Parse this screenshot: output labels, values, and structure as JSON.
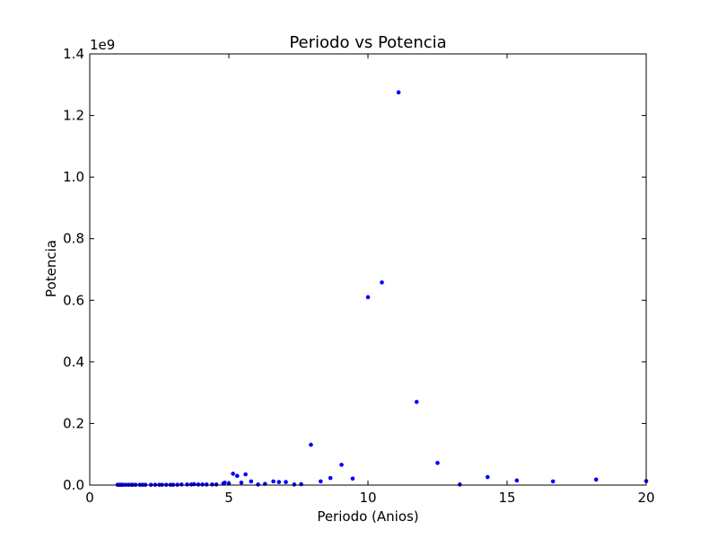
{
  "chart_data": {
    "type": "scatter",
    "title": "Periodo vs Potencia",
    "xlabel": "Periodo (Anios)",
    "ylabel": "Potencia",
    "y_offset_label": "1e9",
    "xlim": [
      0,
      20
    ],
    "ylim": [
      0,
      1.4
    ],
    "y_multiplier": 1000000000,
    "x_ticks": [
      0,
      5,
      10,
      15,
      20
    ],
    "x_tick_labels": [
      "0",
      "5",
      "10",
      "15",
      "20"
    ],
    "y_ticks": [
      0,
      0.2,
      0.4,
      0.6,
      0.8,
      1.0,
      1.2,
      1.4
    ],
    "y_tick_labels": [
      "0.0",
      "0.2",
      "0.4",
      "0.6",
      "0.8",
      "1.0",
      "1.2",
      "1.4"
    ],
    "grid": false,
    "marker_color": "#0000ff",
    "series": [
      {
        "x": [
          1.0,
          1.05,
          1.1,
          1.15,
          1.2,
          1.3,
          1.4,
          1.5,
          1.55,
          1.65,
          1.8,
          1.9,
          2.0,
          2.2,
          2.35,
          2.5,
          2.6,
          2.75,
          2.9,
          3.0,
          3.15,
          3.3,
          3.5,
          3.65,
          3.75,
          3.9,
          4.05,
          4.2,
          4.4,
          4.55,
          4.8,
          4.85,
          5.0,
          5.15,
          5.3,
          5.45,
          5.6,
          5.8,
          6.05,
          6.3,
          6.6,
          6.8,
          7.05,
          7.35,
          7.6,
          7.95,
          8.3,
          8.65,
          9.05,
          9.45,
          10.0,
          10.5,
          11.1,
          11.75,
          12.5,
          13.3,
          14.3,
          15.35,
          16.65,
          18.2,
          20.0
        ],
        "y": [
          0.001,
          0.001,
          0.001,
          0.001,
          0.001,
          0.001,
          0.001,
          0.001,
          0.001,
          0.001,
          0.001,
          0.001,
          0.001,
          0.001,
          0.001,
          0.001,
          0.001,
          0.001,
          0.001,
          0.001,
          0.001,
          0.002,
          0.002,
          0.002,
          0.003,
          0.002,
          0.002,
          0.002,
          0.002,
          0.002,
          0.005,
          0.008,
          0.005,
          0.037,
          0.03,
          0.008,
          0.035,
          0.012,
          0.002,
          0.004,
          0.012,
          0.01,
          0.01,
          0.002,
          0.003,
          0.131,
          0.012,
          0.023,
          0.066,
          0.021,
          0.61,
          0.658,
          1.275,
          0.27,
          0.072,
          0.002,
          0.026,
          0.015,
          0.012,
          0.018,
          0.013
        ]
      }
    ]
  }
}
